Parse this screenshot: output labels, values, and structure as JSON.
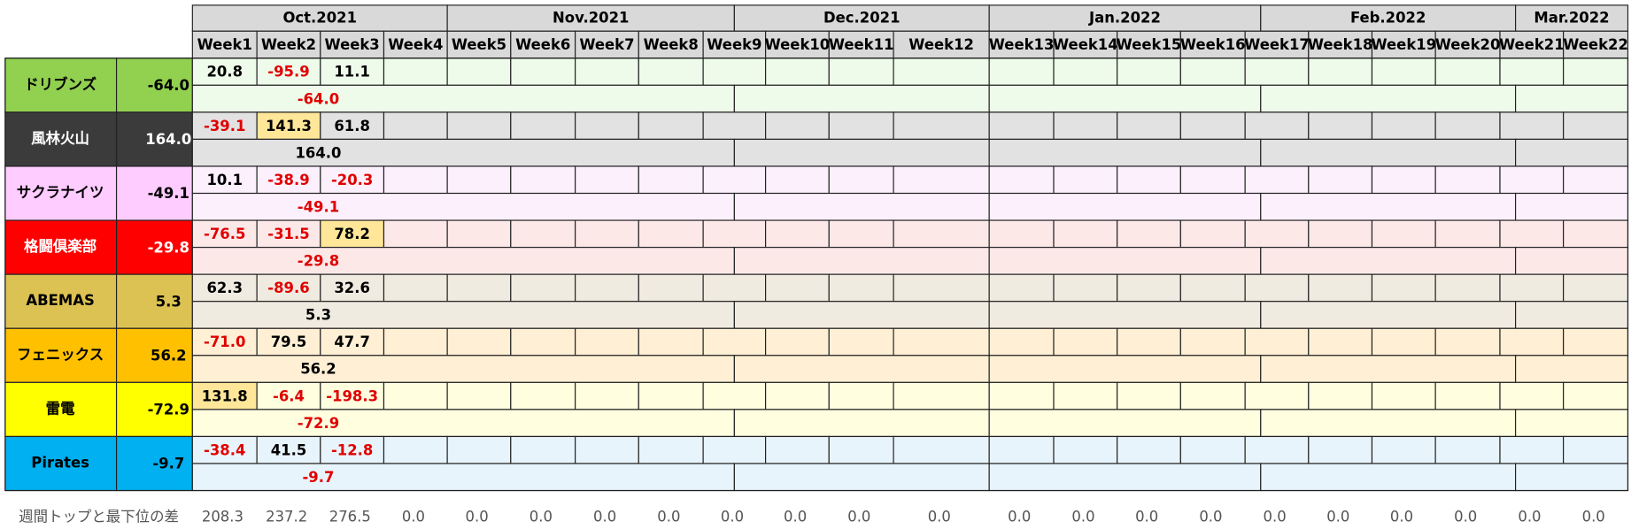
{
  "header": {
    "months": [
      "Oct.2021",
      "Nov.2021",
      "Dec.2021",
      "Jan.2022",
      "Feb.2022",
      "Mar.2022"
    ],
    "weeks": [
      "Week1",
      "Week2",
      "Week3",
      "Week4",
      "Week5",
      "Week6",
      "Week7",
      "Week8",
      "Week9",
      "Week10",
      "Week11",
      "Week12",
      "Week13",
      "Week14",
      "Week15",
      "Week16",
      "Week17",
      "Week18",
      "Week19",
      "Week20",
      "Week21",
      "Week22"
    ]
  },
  "teams": [
    {
      "name": "ドリブンズ",
      "total": "-64.0",
      "weeks": [
        "20.8",
        "-95.9",
        "11.1"
      ],
      "color": "#92d050",
      "text_color": "#000000",
      "tint": "#eefbea"
    },
    {
      "name": "風林火山",
      "total": "164.0",
      "weeks": [
        "-39.1",
        "141.3",
        "61.8"
      ],
      "color": "#3b3b3b",
      "text_color": "#ffffff",
      "tint": "#e2e2e2"
    },
    {
      "name": "サクラナイツ",
      "total": "-49.1",
      "weeks": [
        "10.1",
        "-38.9",
        "-20.3"
      ],
      "color": "#ffccff",
      "text_color": "#000000",
      "tint": "#fdf0fd"
    },
    {
      "name": "格闘倶楽部",
      "total": "-29.8",
      "weeks": [
        "-76.5",
        "-31.5",
        "78.2"
      ],
      "color": "#ff0000",
      "text_color": "#ffffff",
      "tint": "#fde8e8"
    },
    {
      "name": "ABEMAS",
      "total": "5.3",
      "weeks": [
        "62.3",
        "-89.6",
        "32.6"
      ],
      "color": "#dcc253",
      "text_color": "#000000",
      "tint": "#f0ebe1"
    },
    {
      "name": "フェニックス",
      "total": "56.2",
      "weeks": [
        "-71.0",
        "79.5",
        "47.7"
      ],
      "color": "#ffc000",
      "text_color": "#000000",
      "tint": "#fff0d5"
    },
    {
      "name": "雷電",
      "total": "-72.9",
      "weeks": [
        "131.8",
        "-6.4",
        "-198.3"
      ],
      "color": "#ffff00",
      "text_color": "#000000",
      "tint": "#ffffe0"
    },
    {
      "name": "Pirates",
      "total": "-9.7",
      "weeks": [
        "-38.4",
        "41.5",
        "-12.8"
      ],
      "color": "#00b0f0",
      "text_color": "#000000",
      "tint": "#e8f4fb"
    }
  ],
  "footer": {
    "label": "週間トップと最下位の差",
    "values": [
      "208.3",
      "237.2",
      "276.5",
      "0.0",
      "0.0",
      "0.0",
      "0.0",
      "0.0",
      "0.0",
      "0.0",
      "0.0",
      "0.0",
      "0.0",
      "0.0",
      "0.0",
      "0.0",
      "0.0",
      "0.0",
      "0.0",
      "0.0",
      "0.0",
      "0.0"
    ]
  }
}
